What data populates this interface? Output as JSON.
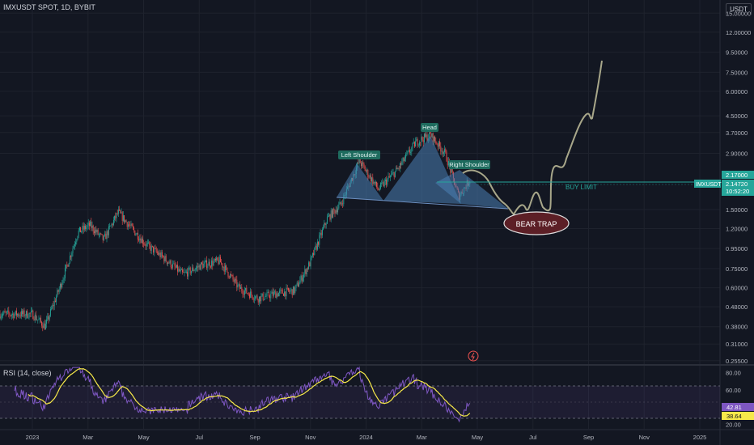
{
  "header": {
    "symbol_title": "IMXUSDT SPOT, 1D, BYBIT",
    "unit": "USDT"
  },
  "price_axis": {
    "ticks": [
      {
        "label": "15.00000",
        "value": 15.0
      },
      {
        "label": "12.00000",
        "value": 12.0
      },
      {
        "label": "9.50000",
        "value": 9.5
      },
      {
        "label": "7.50000",
        "value": 7.5
      },
      {
        "label": "6.00000",
        "value": 6.0
      },
      {
        "label": "4.50000",
        "value": 4.5
      },
      {
        "label": "3.70000",
        "value": 3.7
      },
      {
        "label": "2.90000",
        "value": 2.9
      },
      {
        "label": "1.50000",
        "value": 1.5
      },
      {
        "label": "1.20000",
        "value": 1.2
      },
      {
        "label": "0.95000",
        "value": 0.95
      },
      {
        "label": "0.75000",
        "value": 0.75
      },
      {
        "label": "0.60000",
        "value": 0.6
      },
      {
        "label": "0.48000",
        "value": 0.48
      },
      {
        "label": "0.38000",
        "value": 0.38
      },
      {
        "label": "0.31000",
        "value": 0.31
      },
      {
        "label": "0.25500",
        "value": 0.255
      }
    ],
    "scale": "log",
    "range": [
      0.245,
      17.5
    ]
  },
  "time_axis": {
    "ticks": [
      "2023",
      "Mar",
      "May",
      "Jul",
      "Sep",
      "Nov",
      "2024",
      "Mar",
      "May",
      "Jul",
      "Sep",
      "Nov",
      "2025"
    ]
  },
  "price_badges": {
    "buy_limit": {
      "label": "2.17000",
      "value": 2.17,
      "color": "#26a69a"
    },
    "current": {
      "symbol": "IMXUSDT",
      "price": "2.14720",
      "countdown": "10:52:20",
      "value": 2.1472,
      "color": "#26a69a"
    }
  },
  "annotations": {
    "left_shoulder": "Left Shoulder",
    "head": "Head",
    "right_shoulder": "Right Shoulder",
    "buy_limit": "BUY LIMIT",
    "bear_trap": "BEAR TRAP"
  },
  "rsi": {
    "title": "RSI (14, close)",
    "ticks": [
      {
        "label": "80.00",
        "value": 80
      },
      {
        "label": "60.00",
        "value": 60
      },
      {
        "label": "20.00",
        "value": 20
      }
    ],
    "badges": [
      {
        "label": "42.81",
        "value": 42.81,
        "color": "#7e57c2"
      },
      {
        "label": "38.64",
        "value": 38.64,
        "color": "#f7e94a"
      }
    ],
    "band": [
      30,
      70
    ],
    "range": [
      15,
      88
    ]
  },
  "colors": {
    "background": "#131722",
    "up": "#26a69a",
    "down": "#ef5350",
    "pattern": "#4a7fb5",
    "projection": "#a8a78a",
    "rsi_line": "#7e57c2",
    "rsi_ma": "#f7e94a",
    "bear_trap_fill": "#5c1f26"
  },
  "chart_data": {
    "type": "candlestick",
    "title": "IMXUSDT SPOT, 1D, BYBIT",
    "scale": "log",
    "ylim": [
      0.245,
      17.5
    ],
    "x": [
      "2023",
      "Mar",
      "May",
      "Jul",
      "Sep",
      "Nov",
      "2024",
      "Mar",
      "May",
      "Jul",
      "Sep",
      "Nov",
      "2025"
    ],
    "series": [
      {
        "name": "IMXUSDT",
        "points": [
          {
            "x": "2023-01-01",
            "close": 0.44
          },
          {
            "x": "2023-01-15",
            "close": 0.38
          },
          {
            "x": "2023-02-01",
            "close": 0.62
          },
          {
            "x": "2023-02-20",
            "close": 1.15
          },
          {
            "x": "2023-03-05",
            "close": 1.25
          },
          {
            "x": "2023-03-20",
            "close": 1.05
          },
          {
            "x": "2023-04-05",
            "close": 1.45
          },
          {
            "x": "2023-04-20",
            "close": 1.2
          },
          {
            "x": "2023-05-05",
            "close": 1.0
          },
          {
            "x": "2023-05-25",
            "close": 0.85
          },
          {
            "x": "2023-06-15",
            "close": 0.7
          },
          {
            "x": "2023-07-05",
            "close": 0.78
          },
          {
            "x": "2023-07-25",
            "close": 0.82
          },
          {
            "x": "2023-08-15",
            "close": 0.6
          },
          {
            "x": "2023-09-05",
            "close": 0.53
          },
          {
            "x": "2023-09-25",
            "close": 0.56
          },
          {
            "x": "2023-10-15",
            "close": 0.58
          },
          {
            "x": "2023-11-01",
            "close": 0.8
          },
          {
            "x": "2023-11-20",
            "close": 1.35
          },
          {
            "x": "2023-12-05",
            "close": 1.6
          },
          {
            "x": "2023-12-25",
            "close": 2.65
          },
          {
            "x": "2024-01-15",
            "close": 1.9
          },
          {
            "x": "2024-02-05",
            "close": 2.4
          },
          {
            "x": "2024-02-25",
            "close": 3.3
          },
          {
            "x": "2024-03-12",
            "close": 3.6
          },
          {
            "x": "2024-03-28",
            "close": 2.9
          },
          {
            "x": "2024-04-12",
            "close": 1.75
          },
          {
            "x": "2024-04-25",
            "close": 2.15
          }
        ]
      },
      {
        "name": "projection",
        "points": [
          {
            "x": "2024-05-10",
            "close": 1.65
          },
          {
            "x": "2024-06-05",
            "close": 1.6
          },
          {
            "x": "2024-06-25",
            "close": 1.6
          },
          {
            "x": "2024-07-10",
            "close": 2.5
          },
          {
            "x": "2024-08-10",
            "close": 4.5
          },
          {
            "x": "2024-09-01",
            "close": 5.0
          },
          {
            "x": "2024-09-15",
            "close": 9.5
          }
        ]
      }
    ],
    "rsi": {
      "name": "RSI (14, close)",
      "last": 42.81,
      "ma_last": 38.64
    }
  }
}
